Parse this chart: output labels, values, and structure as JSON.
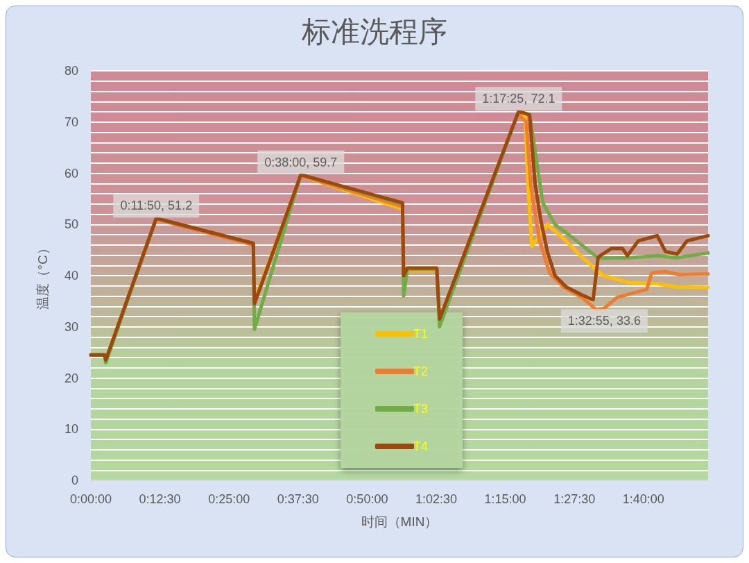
{
  "chart_data": {
    "type": "line",
    "title": "标准洗程序",
    "xlabel": "时间（MIN）",
    "ylabel": "温度（°C）",
    "xlim": [
      0,
      111.7
    ],
    "xticks": [
      {
        "value": 0,
        "label": "0:00:00"
      },
      {
        "value": 12.5,
        "label": "0:12:30"
      },
      {
        "value": 25,
        "label": "0:25:00"
      },
      {
        "value": 37.5,
        "label": "0:37:30"
      },
      {
        "value": 50,
        "label": "0:50:00"
      },
      {
        "value": 62.5,
        "label": "1:02:30"
      },
      {
        "value": 75,
        "label": "1:15:00"
      },
      {
        "value": 87.5,
        "label": "1:27:30"
      },
      {
        "value": 100,
        "label": "1:40:00"
      }
    ],
    "ylim": [
      0,
      80
    ],
    "yticks": [
      0,
      10,
      20,
      30,
      40,
      50,
      60,
      70,
      80
    ],
    "grid": "y",
    "legend": "bottom",
    "marker": "none",
    "line_style": "solid",
    "series": [
      {
        "name": "T1",
        "color": "#ffc000",
        "x": [
          29.4,
          29.6,
          38,
          56.4,
          56.6,
          57.3,
          62.6,
          63.1,
          77.4,
          78.6,
          79.1,
          79.8,
          82.6,
          85.5,
          88.9,
          92.7,
          97.6,
          102.5,
          105.9,
          111.7
        ],
        "values": [
          46,
          35,
          59.5,
          53,
          41,
          41,
          41,
          null,
          71.5,
          71,
          57.8,
          45.7,
          50,
          47.3,
          43.6,
          40,
          38.6,
          38.4,
          37.8,
          37.7
        ]
      },
      {
        "name": "T2",
        "color": "#ed7d31",
        "x": [
          2.7,
          11.83,
          29.4,
          29.6,
          38,
          56.4,
          56.6,
          57.3,
          62.6,
          63.1,
          77.4,
          78.8,
          79.6,
          81.1,
          83,
          85.5,
          88.9,
          91.4,
          92.92,
          95.2,
          100.6,
          101.5,
          104,
          106.4,
          111.7
        ],
        "values": [
          23.5,
          51,
          46,
          34.5,
          59.5,
          53.5,
          40.5,
          41.2,
          41.2,
          null,
          71.5,
          70,
          57.8,
          47.3,
          40.5,
          37.8,
          35.7,
          33.4,
          33.6,
          35.7,
          37.3,
          40.5,
          40.8,
          40.2,
          40.3
        ]
      },
      {
        "name": "T3",
        "color": "#70ad47",
        "x": [
          0,
          2.5,
          2.7,
          11.83,
          29.4,
          29.6,
          38,
          56.4,
          56.6,
          57.3,
          62.6,
          63.1,
          77.4,
          79.4,
          81.8,
          84,
          87.9,
          91.8,
          97.6,
          102.5,
          105.9,
          111.7
        ],
        "values": [
          24.5,
          24.5,
          23,
          51.2,
          46.3,
          29.5,
          59.7,
          54,
          36,
          41.3,
          41.3,
          30,
          72,
          71.5,
          54.2,
          50,
          46.8,
          43.4,
          43.5,
          43.9,
          43.5,
          44.4
        ]
      },
      {
        "name": "T4",
        "color": "#9e480e",
        "x": [
          0,
          2.5,
          2.7,
          11.83,
          29.4,
          29.6,
          38,
          56.4,
          56.6,
          57.3,
          62.6,
          63.1,
          77.42,
          79.4,
          80.4,
          81.4,
          82.6,
          84,
          86,
          88.9,
          90.9,
          91.8,
          94.2,
          96.2,
          97.1,
          99.1,
          102.5,
          104,
          106.1,
          107.9,
          111.7
        ],
        "values": [
          24.5,
          24.5,
          23.5,
          51.2,
          46.3,
          34.5,
          59.7,
          54.2,
          40,
          41.5,
          41.5,
          31.5,
          72.1,
          71.4,
          57.8,
          51,
          44.7,
          40,
          37.8,
          36.2,
          35.3,
          43.6,
          45.3,
          45.3,
          43.9,
          46.8,
          47.8,
          44.7,
          44.2,
          46.8,
          47.8
        ]
      }
    ],
    "annotations": [
      {
        "text": "0:11:50, 51.2",
        "x": 11.83,
        "y": 51.2
      },
      {
        "text": "0:38:00, 59.7",
        "x": 38,
        "y": 59.7
      },
      {
        "text": "1:17:25, 72.1",
        "x": 77.42,
        "y": 72.1
      },
      {
        "text": "1:32:55, 33.6",
        "x": 92.92,
        "y": 33.6
      }
    ]
  }
}
